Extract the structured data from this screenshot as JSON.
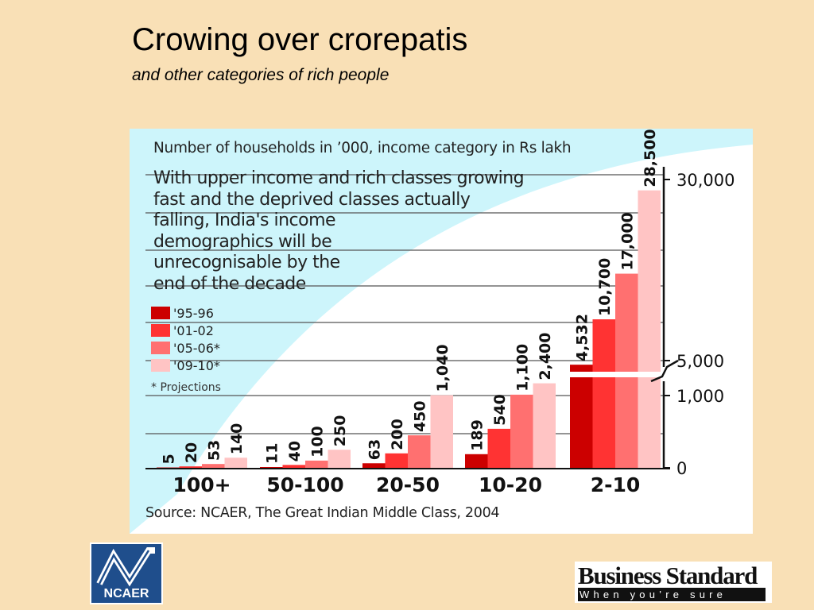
{
  "page": {
    "title": "Crowing over crorepatis",
    "subtitle": "and other categories of rich people"
  },
  "chart_header": "Number of households in ’000, income category in Rs lakh",
  "annotation_lines": [
    "With upper income and rich classes growing",
    "fast and the deprived classes actually",
    "falling, India's income",
    "demographics will be",
    "unrecognisable by the",
    "end of the decade"
  ],
  "footnote": "* Projections",
  "source": "Source: NCAER, The Great Indian Middle Class, 2004",
  "logos": {
    "ncaer": "NCAER",
    "business_standard_name": "Business Standard",
    "business_standard_tagline": "When you’re sure"
  },
  "colors": {
    "page_background": "#f9e0b6",
    "panel_shade": "#cdf5fb",
    "series": [
      "#cc0000",
      "#ff3333",
      "#ff7070",
      "#ffc4c4"
    ]
  },
  "chart_data": {
    "type": "bar",
    "title": "Number of households in ’000, income category in Rs lakh",
    "xlabel": "",
    "ylabel": "",
    "categories": [
      "100+",
      "50-100",
      "20-50",
      "10-20",
      "2-10"
    ],
    "series": [
      {
        "name": "'95-96",
        "values": [
          5,
          11,
          63,
          189,
          4532
        ],
        "labels": [
          "5",
          "11",
          "63",
          "189",
          "4,532"
        ]
      },
      {
        "name": "'01-02",
        "values": [
          20,
          40,
          200,
          540,
          10700
        ],
        "labels": [
          "20",
          "40",
          "200",
          "540",
          "10,700"
        ]
      },
      {
        "name": "'05-06*",
        "values": [
          53,
          100,
          450,
          1100,
          17000
        ],
        "labels": [
          "53",
          "100",
          "450",
          "1,100",
          "17,000"
        ]
      },
      {
        "name": "'09-10*",
        "values": [
          140,
          250,
          1040,
          2400,
          28500
        ],
        "labels": [
          "140",
          "250",
          "1,040",
          "2,400",
          "28,500"
        ]
      }
    ],
    "y_ticks": [
      {
        "value": 0,
        "label": "0"
      },
      {
        "value": 1000,
        "label": "1,000"
      },
      {
        "value": 5000,
        "label": "5,000"
      },
      {
        "value": 30000,
        "label": "30,000"
      }
    ],
    "y_axis_break": [
      1000,
      5000
    ],
    "legend_position": "left",
    "grid": true
  }
}
